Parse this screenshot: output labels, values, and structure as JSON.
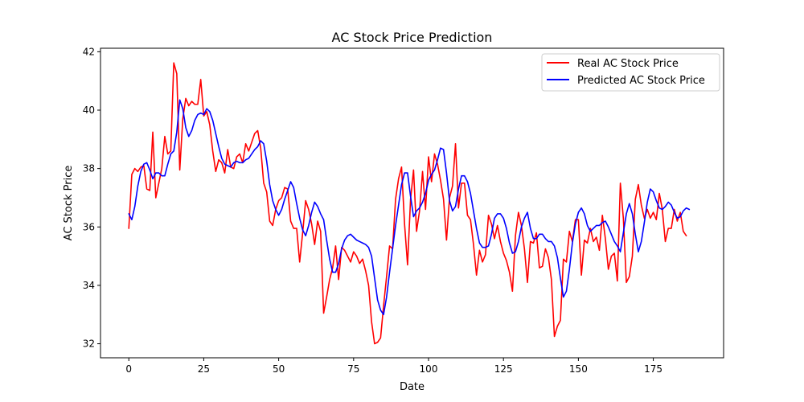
{
  "chart_data": {
    "type": "line",
    "title": "AC Stock Price Prediction",
    "xlabel": "Date",
    "ylabel": "AC Stock Price",
    "xlim": [
      -9.45,
      198.45
    ],
    "ylim": [
      31.52,
      42.12
    ],
    "xticks": [
      0,
      25,
      50,
      75,
      100,
      125,
      150,
      175
    ],
    "yticks": [
      32,
      34,
      36,
      38,
      40,
      42
    ],
    "grid": false,
    "legend_position": "top-right",
    "series": [
      {
        "name": "Real AC Stock Price",
        "color": "#ff0000",
        "x_start": 0,
        "values": [
          35.95,
          37.8,
          38.0,
          37.9,
          38.05,
          38.1,
          37.3,
          37.25,
          39.25,
          37.0,
          37.5,
          38.0,
          39.1,
          38.5,
          38.6,
          41.62,
          41.25,
          37.95,
          39.7,
          40.4,
          40.15,
          40.3,
          40.2,
          40.2,
          41.05,
          39.8,
          39.95,
          39.5,
          38.6,
          37.9,
          38.3,
          38.2,
          37.85,
          38.65,
          38.05,
          38.0,
          38.4,
          38.5,
          38.2,
          38.85,
          38.6,
          38.9,
          39.2,
          39.3,
          38.7,
          37.5,
          37.2,
          36.2,
          36.05,
          36.6,
          36.9,
          37.0,
          37.35,
          37.3,
          36.2,
          35.95,
          35.95,
          34.8,
          35.8,
          36.9,
          36.6,
          36.1,
          35.4,
          36.2,
          35.85,
          33.05,
          33.6,
          34.2,
          34.6,
          35.35,
          34.2,
          35.3,
          35.2,
          35.0,
          34.8,
          35.15,
          35.0,
          34.75,
          34.9,
          34.5,
          34.0,
          32.75,
          32.0,
          32.05,
          32.2,
          33.3,
          34.3,
          35.35,
          35.25,
          36.95,
          37.65,
          38.05,
          36.1,
          34.7,
          36.95,
          37.95,
          35.85,
          36.55,
          37.9,
          36.6,
          38.4,
          37.55,
          38.5,
          38.15,
          37.6,
          36.95,
          35.55,
          37.0,
          37.4,
          38.85,
          36.65,
          37.5,
          37.5,
          36.4,
          36.25,
          35.4,
          34.35,
          35.2,
          34.8,
          35.05,
          36.4,
          36.1,
          35.6,
          36.05,
          35.5,
          35.1,
          34.85,
          34.45,
          33.8,
          35.7,
          36.5,
          36.05,
          35.25,
          34.1,
          35.5,
          35.45,
          35.8,
          34.6,
          34.65,
          35.25,
          34.95,
          34.2,
          32.25,
          32.6,
          32.8,
          34.9,
          34.8,
          35.85,
          35.5,
          36.25,
          36.25,
          34.35,
          35.55,
          35.45,
          35.95,
          35.5,
          35.65,
          35.2,
          36.4,
          35.6,
          34.55,
          35.0,
          35.1,
          34.15,
          37.5,
          36.3,
          34.1,
          34.3,
          35.0,
          36.95,
          37.45,
          36.75,
          36.3,
          36.6,
          36.3,
          36.5,
          36.25,
          37.15,
          36.6,
          35.5,
          35.95,
          35.95,
          36.6,
          36.2,
          36.5,
          35.85,
          35.7
        ]
      },
      {
        "name": "Predicted AC Stock Price",
        "color": "#0000ff",
        "x_start": 0,
        "values": [
          36.45,
          36.25,
          36.7,
          37.4,
          37.9,
          38.15,
          38.2,
          37.95,
          37.65,
          37.85,
          37.85,
          37.75,
          37.75,
          38.15,
          38.5,
          38.6,
          39.25,
          40.35,
          40.05,
          39.4,
          39.1,
          39.3,
          39.65,
          39.85,
          39.9,
          39.85,
          40.05,
          39.95,
          39.65,
          39.2,
          38.75,
          38.35,
          38.15,
          38.1,
          38.05,
          38.2,
          38.25,
          38.2,
          38.2,
          38.3,
          38.35,
          38.5,
          38.65,
          38.75,
          38.95,
          38.85,
          38.25,
          37.45,
          36.9,
          36.6,
          36.4,
          36.6,
          36.95,
          37.25,
          37.55,
          37.35,
          36.8,
          36.3,
          35.9,
          35.7,
          36.05,
          36.5,
          36.85,
          36.7,
          36.45,
          36.25,
          35.55,
          34.9,
          34.45,
          34.45,
          34.75,
          35.25,
          35.55,
          35.7,
          35.75,
          35.65,
          35.55,
          35.5,
          35.45,
          35.4,
          35.3,
          35.0,
          34.25,
          33.5,
          33.15,
          33.0,
          33.6,
          34.45,
          35.25,
          36.05,
          36.75,
          37.45,
          37.85,
          37.85,
          37.05,
          36.35,
          36.55,
          36.65,
          36.85,
          37.15,
          37.6,
          37.8,
          37.95,
          38.3,
          38.7,
          38.65,
          37.85,
          36.9,
          36.55,
          36.7,
          37.3,
          37.75,
          37.75,
          37.55,
          37.15,
          36.55,
          35.95,
          35.45,
          35.3,
          35.3,
          35.35,
          35.75,
          36.3,
          36.45,
          36.45,
          36.3,
          35.95,
          35.45,
          35.1,
          35.15,
          35.5,
          36.0,
          36.3,
          36.5,
          35.95,
          35.6,
          35.6,
          35.75,
          35.75,
          35.6,
          35.5,
          35.5,
          35.35,
          34.95,
          34.25,
          33.6,
          33.8,
          34.55,
          35.45,
          36.1,
          36.5,
          36.65,
          36.45,
          36.05,
          35.85,
          35.95,
          36.05,
          36.05,
          36.15,
          36.2,
          36.0,
          35.75,
          35.5,
          35.35,
          35.15,
          35.8,
          36.45,
          36.8,
          36.45,
          35.75,
          35.15,
          35.5,
          36.15,
          36.85,
          37.3,
          37.2,
          36.9,
          36.65,
          36.6,
          36.7,
          36.85,
          36.75,
          36.5,
          36.3,
          36.35,
          36.55,
          36.65,
          36.6
        ]
      }
    ]
  }
}
